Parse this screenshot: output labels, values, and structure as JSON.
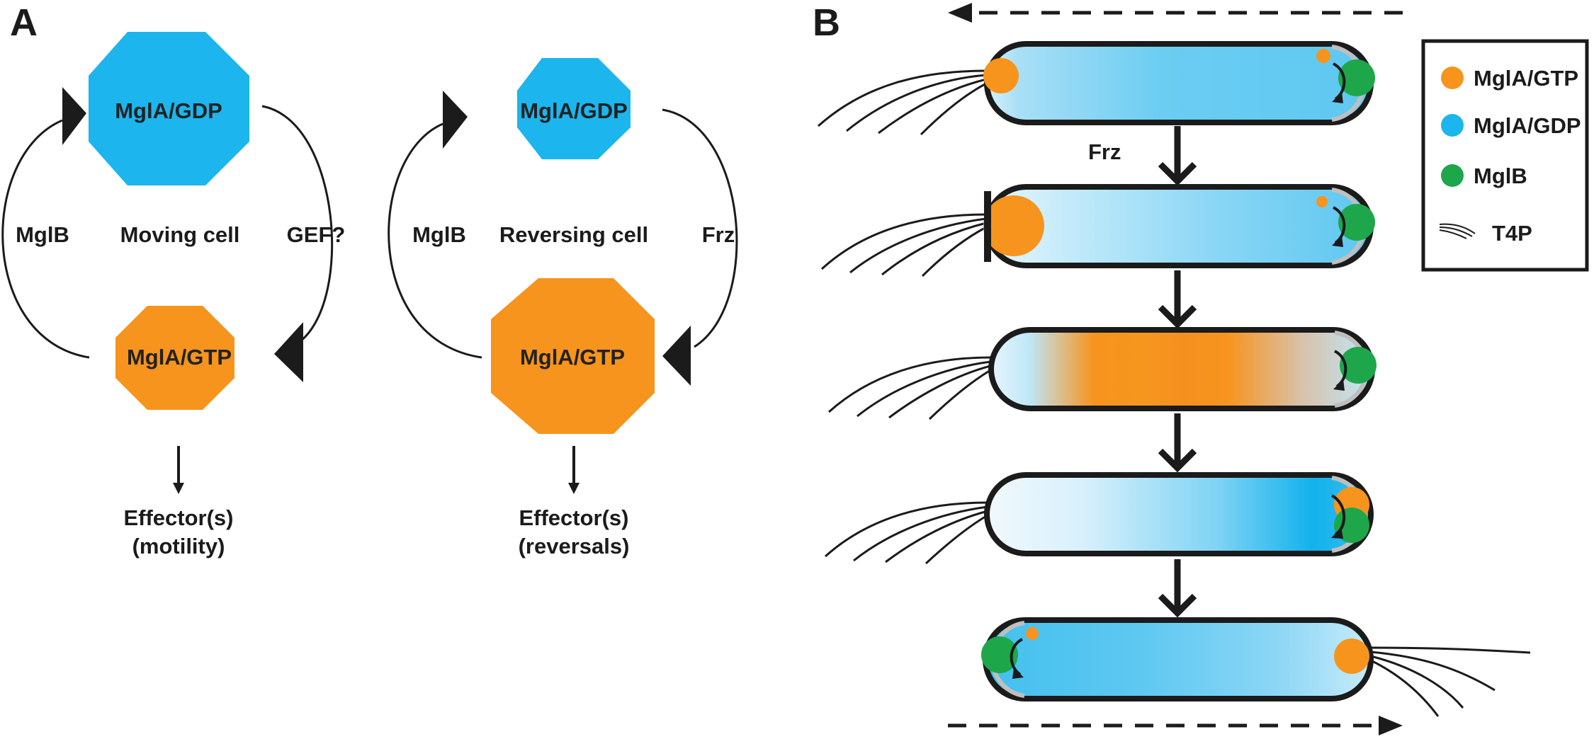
{
  "colors": {
    "gtp": "#f7941d",
    "gdp": "#1cb5ed",
    "mglb": "#1ea64b",
    "stroke": "#1b1b1b"
  },
  "panel_a": {
    "letter": "A",
    "moving": {
      "gdp_label": "MglA/GDP",
      "gtp_label": "MglA/GTP",
      "left_label": "MglB",
      "center_label": "Moving cell",
      "right_label": "GEF?",
      "effector_line1": "Effector(s)",
      "effector_line2": "(motility)"
    },
    "reversing": {
      "gdp_label": "MglA/GDP",
      "gtp_label": "MglA/GTP",
      "left_label": "MglB",
      "center_label": "Reversing cell",
      "right_label": "Frz",
      "effector_line1": "Effector(s)",
      "effector_line2": "(reversals)"
    }
  },
  "panel_b": {
    "letter": "B",
    "frz_label": "Frz",
    "legend": {
      "gtp": "MglA/GTP",
      "gdp": "MglA/GDP",
      "mglb": "MglB",
      "t4p": "T4P"
    }
  }
}
